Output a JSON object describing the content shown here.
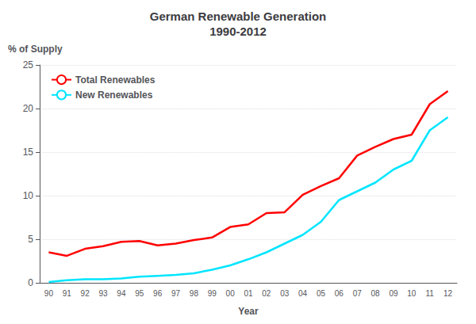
{
  "chart_data": {
    "type": "line",
    "title": "German Renewable Generation\n1990-2012",
    "xlabel": "Year",
    "ylabel": "% of Supply",
    "categories": [
      "90",
      "91",
      "92",
      "93",
      "94",
      "95",
      "96",
      "97",
      "98",
      "99",
      "00",
      "01",
      "02",
      "03",
      "04",
      "05",
      "06",
      "07",
      "08",
      "09",
      "10",
      "11",
      "12"
    ],
    "series": [
      {
        "name": "Total Renewables",
        "color": "#ff0000",
        "values": [
          3.5,
          3.1,
          3.9,
          4.2,
          4.7,
          4.8,
          4.3,
          4.5,
          4.9,
          5.2,
          6.4,
          6.7,
          8.0,
          8.1,
          10.1,
          11.1,
          12.0,
          14.6,
          15.6,
          16.5,
          17.0,
          20.5,
          22.0
        ]
      },
      {
        "name": "New Renewables",
        "color": "#00e5ff",
        "values": [
          0.1,
          0.3,
          0.4,
          0.4,
          0.5,
          0.7,
          0.8,
          0.9,
          1.1,
          1.5,
          2.0,
          2.7,
          3.5,
          4.5,
          5.5,
          7.0,
          9.5,
          10.5,
          11.5,
          13.0,
          14.0,
          17.5,
          19.0
        ]
      }
    ],
    "ylim": [
      0,
      25
    ],
    "yticks": [
      0,
      5,
      10,
      15,
      20,
      25
    ],
    "grid": true,
    "legend": "upper left"
  }
}
